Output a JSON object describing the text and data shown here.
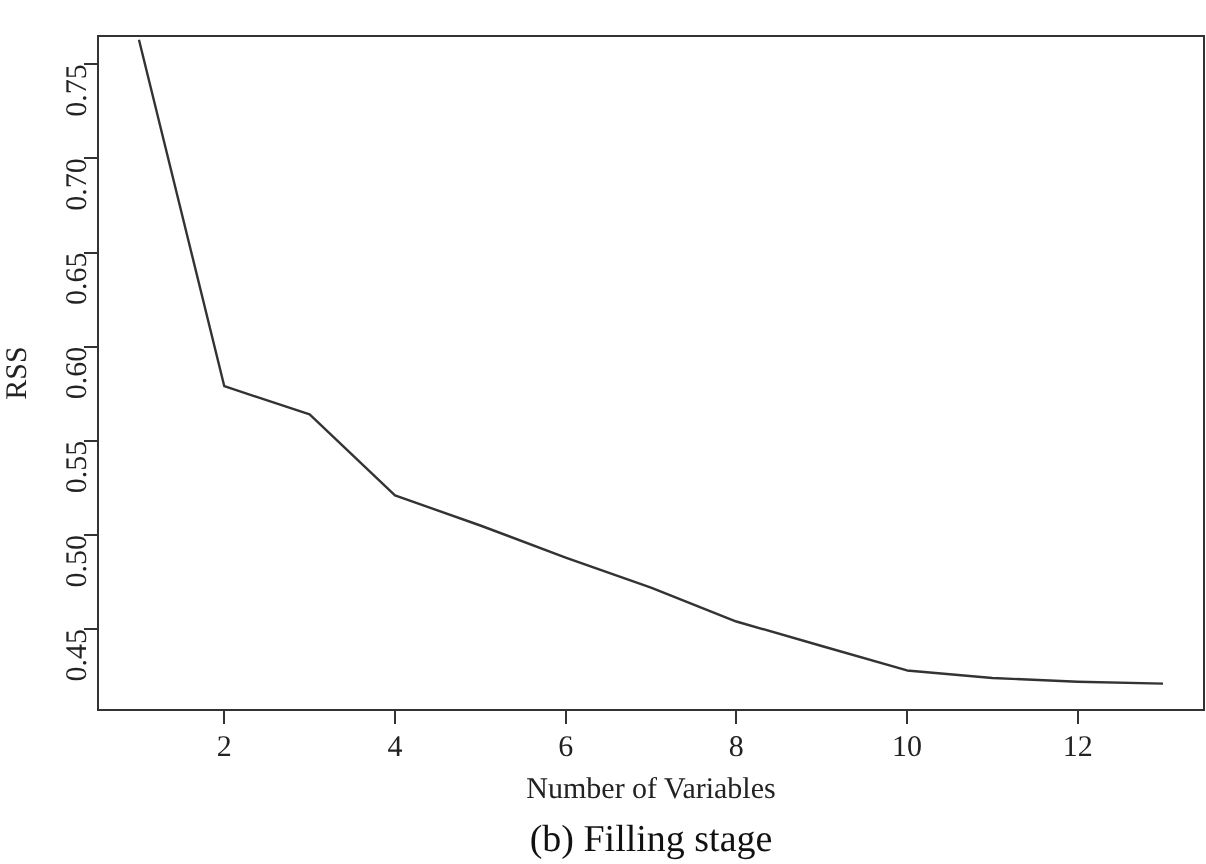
{
  "chart_data": {
    "type": "line",
    "xlabel": "Number of Variables",
    "ylabel": "RSS",
    "x": [
      1,
      2,
      3,
      4,
      5,
      6,
      7,
      8,
      9,
      10,
      11,
      12,
      13
    ],
    "series": [
      {
        "color": "#333333",
        "values": [
          0.763,
          0.579,
          0.564,
          0.521,
          0.505,
          0.488,
          0.472,
          0.454,
          0.441,
          0.428,
          0.424,
          0.422,
          0.421
        ]
      }
    ],
    "xlim": [
      0.52,
      13.48
    ],
    "xticks": [
      2,
      4,
      6,
      8,
      10,
      12
    ],
    "ylim": [
      0.407,
      0.765
    ],
    "yticks": [
      0.45,
      {
        "value": 0.5,
        "label": "0.50"
      },
      0.55,
      {
        "value": 0.6,
        "label": "0.60"
      },
      0.65,
      {
        "value": 0.7,
        "label": "0.70"
      },
      0.75
    ],
    "grid": false,
    "legend": false,
    "marker": "none",
    "line_style": "solid",
    "annotations": [
      "(b) Filling stage"
    ]
  }
}
